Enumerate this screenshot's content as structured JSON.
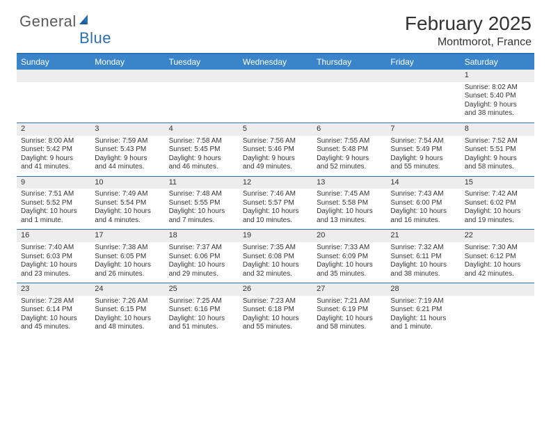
{
  "brand": {
    "general": "General",
    "blue": "Blue"
  },
  "title": "February 2025",
  "location": "Montmorot, France",
  "colors": {
    "header_bg": "#3a85c9",
    "border": "#2a6fb5",
    "band_bg": "#ededed",
    "text": "#333333",
    "logo_gray": "#5a5a5a",
    "logo_blue": "#2a6fb5"
  },
  "day_names": [
    "Sunday",
    "Monday",
    "Tuesday",
    "Wednesday",
    "Thursday",
    "Friday",
    "Saturday"
  ],
  "weeks": [
    [
      {
        "blank": true
      },
      {
        "blank": true
      },
      {
        "blank": true
      },
      {
        "blank": true
      },
      {
        "blank": true
      },
      {
        "blank": true
      },
      {
        "n": "1",
        "sr": "Sunrise: 8:02 AM",
        "ss": "Sunset: 5:40 PM",
        "d1": "Daylight: 9 hours",
        "d2": "and 38 minutes."
      }
    ],
    [
      {
        "n": "2",
        "sr": "Sunrise: 8:00 AM",
        "ss": "Sunset: 5:42 PM",
        "d1": "Daylight: 9 hours",
        "d2": "and 41 minutes."
      },
      {
        "n": "3",
        "sr": "Sunrise: 7:59 AM",
        "ss": "Sunset: 5:43 PM",
        "d1": "Daylight: 9 hours",
        "d2": "and 44 minutes."
      },
      {
        "n": "4",
        "sr": "Sunrise: 7:58 AM",
        "ss": "Sunset: 5:45 PM",
        "d1": "Daylight: 9 hours",
        "d2": "and 46 minutes."
      },
      {
        "n": "5",
        "sr": "Sunrise: 7:56 AM",
        "ss": "Sunset: 5:46 PM",
        "d1": "Daylight: 9 hours",
        "d2": "and 49 minutes."
      },
      {
        "n": "6",
        "sr": "Sunrise: 7:55 AM",
        "ss": "Sunset: 5:48 PM",
        "d1": "Daylight: 9 hours",
        "d2": "and 52 minutes."
      },
      {
        "n": "7",
        "sr": "Sunrise: 7:54 AM",
        "ss": "Sunset: 5:49 PM",
        "d1": "Daylight: 9 hours",
        "d2": "and 55 minutes."
      },
      {
        "n": "8",
        "sr": "Sunrise: 7:52 AM",
        "ss": "Sunset: 5:51 PM",
        "d1": "Daylight: 9 hours",
        "d2": "and 58 minutes."
      }
    ],
    [
      {
        "n": "9",
        "sr": "Sunrise: 7:51 AM",
        "ss": "Sunset: 5:52 PM",
        "d1": "Daylight: 10 hours",
        "d2": "and 1 minute."
      },
      {
        "n": "10",
        "sr": "Sunrise: 7:49 AM",
        "ss": "Sunset: 5:54 PM",
        "d1": "Daylight: 10 hours",
        "d2": "and 4 minutes."
      },
      {
        "n": "11",
        "sr": "Sunrise: 7:48 AM",
        "ss": "Sunset: 5:55 PM",
        "d1": "Daylight: 10 hours",
        "d2": "and 7 minutes."
      },
      {
        "n": "12",
        "sr": "Sunrise: 7:46 AM",
        "ss": "Sunset: 5:57 PM",
        "d1": "Daylight: 10 hours",
        "d2": "and 10 minutes."
      },
      {
        "n": "13",
        "sr": "Sunrise: 7:45 AM",
        "ss": "Sunset: 5:58 PM",
        "d1": "Daylight: 10 hours",
        "d2": "and 13 minutes."
      },
      {
        "n": "14",
        "sr": "Sunrise: 7:43 AM",
        "ss": "Sunset: 6:00 PM",
        "d1": "Daylight: 10 hours",
        "d2": "and 16 minutes."
      },
      {
        "n": "15",
        "sr": "Sunrise: 7:42 AM",
        "ss": "Sunset: 6:02 PM",
        "d1": "Daylight: 10 hours",
        "d2": "and 19 minutes."
      }
    ],
    [
      {
        "n": "16",
        "sr": "Sunrise: 7:40 AM",
        "ss": "Sunset: 6:03 PM",
        "d1": "Daylight: 10 hours",
        "d2": "and 23 minutes."
      },
      {
        "n": "17",
        "sr": "Sunrise: 7:38 AM",
        "ss": "Sunset: 6:05 PM",
        "d1": "Daylight: 10 hours",
        "d2": "and 26 minutes."
      },
      {
        "n": "18",
        "sr": "Sunrise: 7:37 AM",
        "ss": "Sunset: 6:06 PM",
        "d1": "Daylight: 10 hours",
        "d2": "and 29 minutes."
      },
      {
        "n": "19",
        "sr": "Sunrise: 7:35 AM",
        "ss": "Sunset: 6:08 PM",
        "d1": "Daylight: 10 hours",
        "d2": "and 32 minutes."
      },
      {
        "n": "20",
        "sr": "Sunrise: 7:33 AM",
        "ss": "Sunset: 6:09 PM",
        "d1": "Daylight: 10 hours",
        "d2": "and 35 minutes."
      },
      {
        "n": "21",
        "sr": "Sunrise: 7:32 AM",
        "ss": "Sunset: 6:11 PM",
        "d1": "Daylight: 10 hours",
        "d2": "and 38 minutes."
      },
      {
        "n": "22",
        "sr": "Sunrise: 7:30 AM",
        "ss": "Sunset: 6:12 PM",
        "d1": "Daylight: 10 hours",
        "d2": "and 42 minutes."
      }
    ],
    [
      {
        "n": "23",
        "sr": "Sunrise: 7:28 AM",
        "ss": "Sunset: 6:14 PM",
        "d1": "Daylight: 10 hours",
        "d2": "and 45 minutes."
      },
      {
        "n": "24",
        "sr": "Sunrise: 7:26 AM",
        "ss": "Sunset: 6:15 PM",
        "d1": "Daylight: 10 hours",
        "d2": "and 48 minutes."
      },
      {
        "n": "25",
        "sr": "Sunrise: 7:25 AM",
        "ss": "Sunset: 6:16 PM",
        "d1": "Daylight: 10 hours",
        "d2": "and 51 minutes."
      },
      {
        "n": "26",
        "sr": "Sunrise: 7:23 AM",
        "ss": "Sunset: 6:18 PM",
        "d1": "Daylight: 10 hours",
        "d2": "and 55 minutes."
      },
      {
        "n": "27",
        "sr": "Sunrise: 7:21 AM",
        "ss": "Sunset: 6:19 PM",
        "d1": "Daylight: 10 hours",
        "d2": "and 58 minutes."
      },
      {
        "n": "28",
        "sr": "Sunrise: 7:19 AM",
        "ss": "Sunset: 6:21 PM",
        "d1": "Daylight: 11 hours",
        "d2": "and 1 minute."
      },
      {
        "blank": true
      }
    ]
  ]
}
